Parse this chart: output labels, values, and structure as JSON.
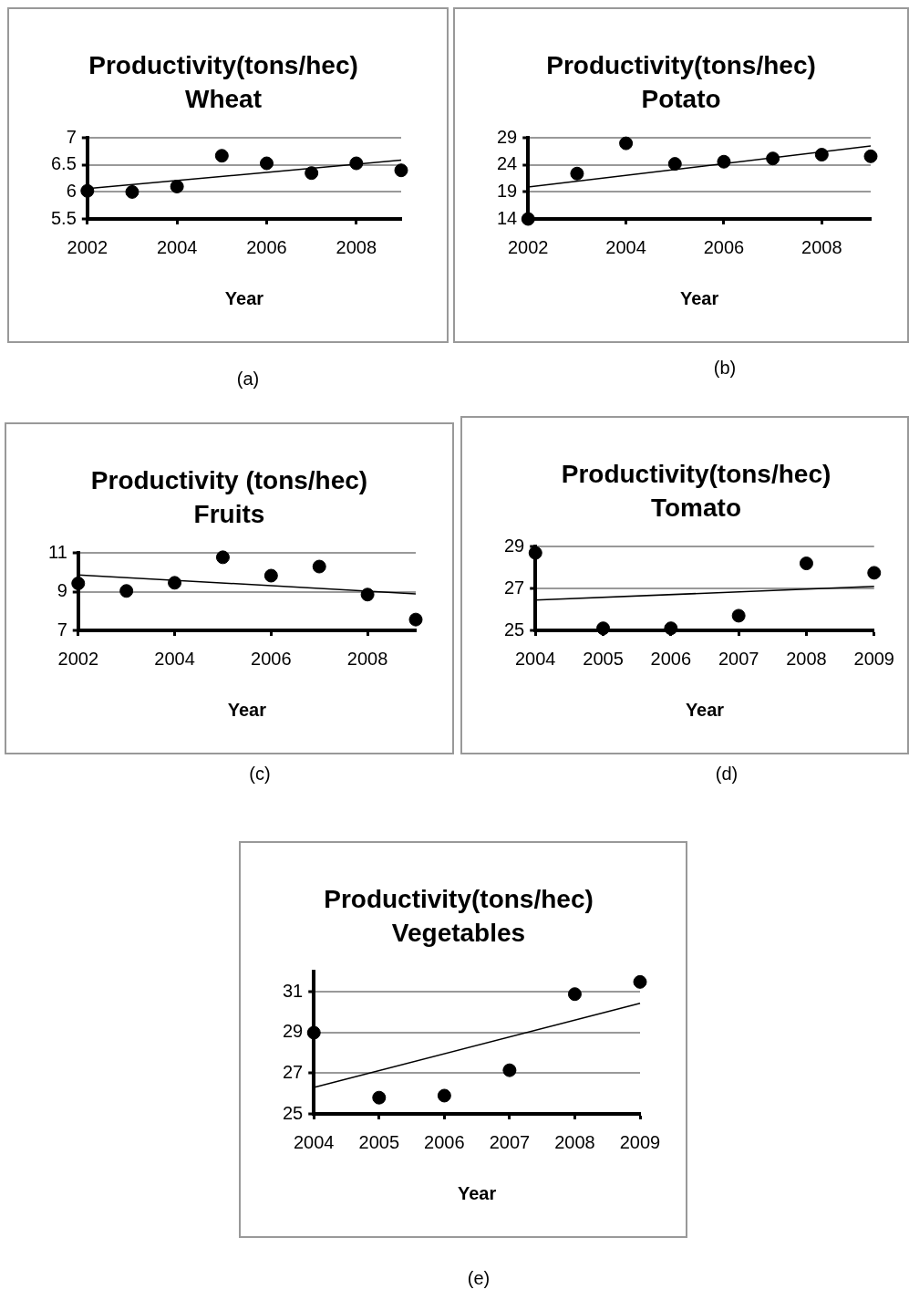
{
  "chart_data": [
    {
      "type": "scatter",
      "title": "Productivity(tons/hec)",
      "subtitle": "Wheat",
      "xlabel": "Year",
      "xlim": [
        2002,
        2009
      ],
      "xticks": [
        2002,
        2004,
        2006,
        2008
      ],
      "ylim": [
        5.5,
        7
      ],
      "yticks": [
        5.5,
        6,
        6.5,
        7
      ],
      "grid": "y",
      "annotations": [
        "(a)"
      ],
      "series": [
        {
          "type": "scatter",
          "marker": "circle",
          "color": "#000000",
          "x": [
            2002,
            2003,
            2004,
            2005,
            2006,
            2007,
            2008,
            2009
          ],
          "values": [
            6.02,
            6.0,
            6.1,
            6.67,
            6.53,
            6.35,
            6.53,
            6.4
          ]
        },
        {
          "type": "line",
          "marker": "none",
          "color": "#000000",
          "x": [
            2002,
            2009
          ],
          "values": [
            6.06,
            6.59
          ]
        }
      ]
    },
    {
      "type": "scatter",
      "title": "Productivity(tons/hec)",
      "subtitle": "Potato",
      "xlabel": "Year",
      "xlim": [
        2002,
        2009
      ],
      "xticks": [
        2002,
        2004,
        2006,
        2008
      ],
      "ylim": [
        14,
        29
      ],
      "yticks": [
        14,
        19,
        24,
        29
      ],
      "grid": "y",
      "annotations": [
        "(b)"
      ],
      "series": [
        {
          "type": "scatter",
          "marker": "circle",
          "color": "#000000",
          "x": [
            2002,
            2003,
            2004,
            2005,
            2006,
            2007,
            2008,
            2009
          ],
          "values": [
            14,
            22.4,
            28,
            24.2,
            24.6,
            25.2,
            25.9,
            25.6
          ]
        },
        {
          "type": "line",
          "marker": "none",
          "color": "#000000",
          "x": [
            2002,
            2009
          ],
          "values": [
            19.9,
            27.5
          ]
        }
      ]
    },
    {
      "type": "scatter",
      "title": "Productivity (tons/hec)",
      "subtitle": "Fruits",
      "xlabel": "Year",
      "xlim": [
        2002,
        2009
      ],
      "xticks": [
        2002,
        2004,
        2006,
        2008
      ],
      "ylim": [
        7,
        11
      ],
      "yticks": [
        7,
        9,
        11
      ],
      "grid": "y",
      "annotations": [
        "(c)"
      ],
      "series": [
        {
          "type": "scatter",
          "marker": "circle",
          "color": "#000000",
          "x": [
            2002,
            2003,
            2004,
            2005,
            2006,
            2007,
            2008,
            2009
          ],
          "values": [
            9.43,
            9.04,
            9.46,
            10.78,
            9.83,
            10.3,
            8.85,
            7.56
          ]
        },
        {
          "type": "line",
          "marker": "none",
          "color": "#000000",
          "x": [
            2002,
            2009
          ],
          "values": [
            9.87,
            8.89
          ]
        }
      ]
    },
    {
      "type": "scatter",
      "title": "Productivity(tons/hec)",
      "subtitle": "Tomato",
      "xlabel": "Year",
      "xlim": [
        2004,
        2009
      ],
      "xticks": [
        2004,
        2005,
        2006,
        2007,
        2008,
        2009
      ],
      "ylim": [
        25,
        29
      ],
      "yticks": [
        25,
        27,
        29
      ],
      "grid": "y",
      "annotations": [
        "(d)"
      ],
      "series": [
        {
          "type": "scatter",
          "marker": "circle",
          "color": "#000000",
          "x": [
            2004,
            2005,
            2006,
            2007,
            2008,
            2009
          ],
          "values": [
            28.7,
            25.1,
            25.1,
            25.7,
            28.2,
            27.75
          ]
        },
        {
          "type": "line",
          "marker": "none",
          "color": "#000000",
          "x": [
            2004,
            2009
          ],
          "values": [
            26.45,
            27.1
          ]
        }
      ]
    },
    {
      "type": "scatter",
      "title": "Productivity(tons/hec)",
      "subtitle": "Vegetables",
      "xlabel": "Year",
      "xlim": [
        2004,
        2009
      ],
      "xticks": [
        2004,
        2005,
        2006,
        2007,
        2008,
        2009
      ],
      "ylim": [
        25,
        32
      ],
      "yticks": [
        25,
        27,
        29,
        31
      ],
      "grid": "y",
      "annotations": [
        "(e)"
      ],
      "series": [
        {
          "type": "scatter",
          "marker": "circle",
          "color": "#000000",
          "x": [
            2004,
            2005,
            2006,
            2007,
            2008,
            2009
          ],
          "values": [
            29,
            25.8,
            25.9,
            27.15,
            30.9,
            31.5
          ]
        },
        {
          "type": "line",
          "marker": "none",
          "color": "#000000",
          "x": [
            2004,
            2009
          ],
          "values": [
            26.3,
            30.45
          ]
        }
      ]
    }
  ]
}
